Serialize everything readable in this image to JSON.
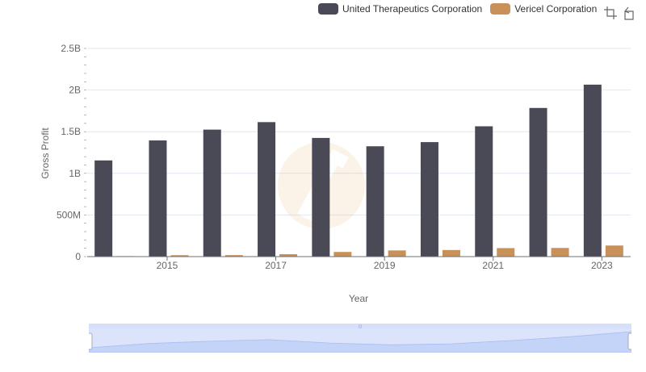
{
  "chart_data": {
    "type": "bar",
    "xlabel": "Year",
    "ylabel": "Gross Profit",
    "x": [
      2014,
      2015,
      2016,
      2017,
      2018,
      2019,
      2020,
      2021,
      2022,
      2023
    ],
    "x_tick_labels": [
      "2015",
      "2017",
      "2019",
      "2021",
      "2023"
    ],
    "y_tick_labels": [
      "0",
      "500M",
      "1B",
      "1.5B",
      "2B",
      "2.5B"
    ],
    "ylim": [
      0,
      2500000000
    ],
    "grid": true,
    "legend_position": "top-right",
    "series": [
      {
        "name": "United Therapeutics Corporation",
        "color": "#4a4a57",
        "values": [
          1155000000,
          1395000000,
          1525000000,
          1615000000,
          1425000000,
          1325000000,
          1375000000,
          1565000000,
          1785000000,
          2065000000
        ]
      },
      {
        "name": "Vericel Corporation",
        "color": "#c8915a",
        "values": [
          6000000,
          17000000,
          18000000,
          29000000,
          56000000,
          74000000,
          79000000,
          102000000,
          104000000,
          133000000
        ]
      }
    ]
  },
  "toolbox": {
    "zoom_icon": "zoom-select-icon",
    "reset_icon": "zoom-reset-icon"
  },
  "colors": {
    "grid": "#e0e6f1",
    "zoom_fill": "#d6e0fb",
    "zoom_border": "#b9c7ec"
  }
}
